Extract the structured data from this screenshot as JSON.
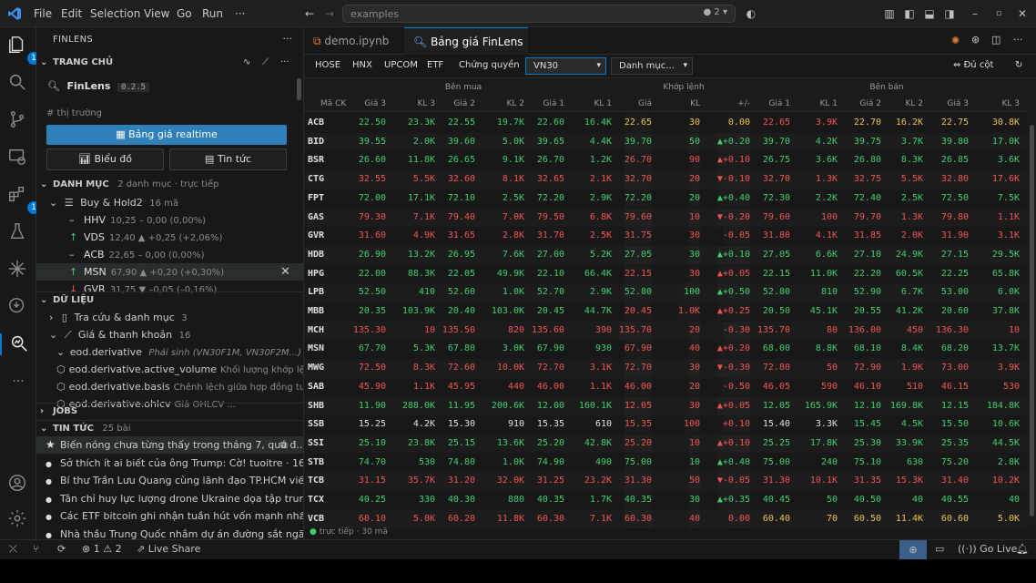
{
  "menu": [
    "File",
    "Edit",
    "Selection",
    "View",
    "Go",
    "Run",
    "···"
  ],
  "command_center": {
    "placeholder": "examples",
    "copilot_count": "2"
  },
  "activity": {
    "explorer_badge": "1",
    "extensions_badge": "1"
  },
  "sidebar": {
    "title": "FINLENS",
    "home": {
      "label": "TRANG CHỦ"
    },
    "app": {
      "name": "FinLens",
      "version": "0.2.5"
    },
    "market_heading": "# thị trường",
    "realtime_button": "Bảng giá realtime",
    "chart_button": "Biểu đồ",
    "news_button": "Tin tức",
    "portfolio": {
      "label": "DANH MỤC",
      "sub": "2 danh mục · trực tiếp",
      "group": "Buy & Hold2",
      "group_count": "16 mã",
      "items": [
        {
          "sym": "HHV",
          "detail": "10,25 – 0,00 (0,00%)",
          "dir": "flat"
        },
        {
          "sym": "VDS",
          "detail": "12,40 ▲ +0,25 (+2,06%)",
          "dir": "up"
        },
        {
          "sym": "ACB",
          "detail": "22,65 – 0,00 (0,00%)",
          "dir": "flat"
        },
        {
          "sym": "MSN",
          "detail": "67,90 ▲ +0,20 (+0,30%)",
          "dir": "up"
        },
        {
          "sym": "GVR",
          "detail": "31,75 ▼ –0,05 (–0,16%)",
          "dir": "down"
        }
      ]
    },
    "data": {
      "label": "DỮ LIỆU",
      "lookup": "Tra cứu & danh mục",
      "lookup_count": "3",
      "prices": "Giá & thanh khoản",
      "prices_count": "16",
      "eod": "eod.derivative",
      "eod_desc": "Phái sinh (VN30F1M, VN30F2M...)",
      "items": [
        {
          "name": "eod.derivative.active_volume",
          "desc": "Khối lượng khớp lện..."
        },
        {
          "name": "eod.derivative.basis",
          "desc": "Chênh lệch giữa hợp đồng tư..."
        },
        {
          "name": "eod.derivative.ohlcv",
          "desc": "Giá OHLCV ..."
        }
      ]
    },
    "jobs": {
      "label": "JOBS"
    },
    "news": {
      "label": "TIN TỨC",
      "count": "25 bài",
      "items": [
        "Biến nóng chưa từng thấy trong tháng 7, quá đ...",
        "Sở thích ít ai biết của ông Trump: Cờ!  tuoitre · 16 ph...",
        "Bí thư Trần Lưu Quang cùng lãnh đạo TP.HCM viến...",
        "Tân chỉ huy lực lượng drone Ukraine dọa tập trung...",
        "Các ETF bitcoin ghi nhận tuần hút vốn mạnh nhất ...",
        "Nhà thầu Trung Quốc nhắm dự án đường sắt ngã..."
      ]
    }
  },
  "tabs": [
    {
      "label": "demo.ipynb"
    },
    {
      "label": "Bảng giá FinLens"
    }
  ],
  "toolbar": {
    "filters": [
      "HOSE",
      "HNX",
      "UPCOM",
      "ETF",
      "Chứng quyền"
    ],
    "index_select": "VN30",
    "list_select": "Danh mục...",
    "fit_label": "Đủ cột"
  },
  "board": {
    "groups": {
      "buy": "Bên mua",
      "match": "Khớp lệnh",
      "sell": "Bên bán"
    },
    "columns": [
      "Mã CK",
      "Giá 3",
      "KL 3",
      "Giá 2",
      "KL 2",
      "Giá 1",
      "KL 1",
      "Giá",
      "KL",
      "+/-",
      "Giá 1",
      "KL 1",
      "Giá 2",
      "KL 2",
      "Giá 3",
      "KL 3"
    ],
    "rows": [
      [
        "ACB",
        "22.50",
        "23.3K",
        "22.55",
        "19.7K",
        "22.60",
        "16.4K",
        "22.65",
        "30",
        "0.00",
        "22.65",
        "3.9K",
        "22.70",
        "16.2K",
        "22.75",
        "30.8K"
      ],
      [
        "BID",
        "39.55",
        "2.0K",
        "39.60",
        "5.0K",
        "39.65",
        "4.4K",
        "39.70",
        "50",
        "▲+0.20",
        "39.70",
        "4.2K",
        "39.75",
        "3.7K",
        "39.80",
        "17.0K"
      ],
      [
        "BSR",
        "26.60",
        "11.8K",
        "26.65",
        "9.1K",
        "26.70",
        "1.2K",
        "26.70",
        "90",
        "▲+0.10",
        "26.75",
        "3.6K",
        "26.80",
        "8.3K",
        "26.85",
        "3.6K"
      ],
      [
        "CTG",
        "32.55",
        "5.5K",
        "32.60",
        "8.1K",
        "32.65",
        "2.1K",
        "32.70",
        "20",
        "▼-0.10",
        "32.70",
        "1.3K",
        "32.75",
        "5.5K",
        "32.80",
        "17.6K"
      ],
      [
        "FPT",
        "72.00",
        "17.1K",
        "72.10",
        "2.5K",
        "72.20",
        "2.9K",
        "72.20",
        "20",
        "▲+0.40",
        "72.30",
        "2.2K",
        "72.40",
        "2.5K",
        "72.50",
        "7.5K"
      ],
      [
        "GAS",
        "79.30",
        "7.1K",
        "79.40",
        "7.0K",
        "79.50",
        "6.8K",
        "79.60",
        "10",
        "▼-0.20",
        "79.60",
        "100",
        "79.70",
        "1.3K",
        "79.80",
        "1.1K"
      ],
      [
        "GVR",
        "31.60",
        "4.9K",
        "31.65",
        "2.8K",
        "31.70",
        "2.5K",
        "31.75",
        "30",
        "-0.05",
        "31.80",
        "4.1K",
        "31.85",
        "2.0K",
        "31.90",
        "3.1K"
      ],
      [
        "HDB",
        "26.90",
        "13.2K",
        "26.95",
        "7.6K",
        "27.00",
        "5.2K",
        "27.05",
        "30",
        "▲+0.10",
        "27.05",
        "6.6K",
        "27.10",
        "24.9K",
        "27.15",
        "29.5K"
      ],
      [
        "HPG",
        "22.00",
        "88.3K",
        "22.05",
        "49.9K",
        "22.10",
        "66.4K",
        "22.15",
        "30",
        "▲+0.05",
        "22.15",
        "11.0K",
        "22.20",
        "60.5K",
        "22.25",
        "65.8K"
      ],
      [
        "LPB",
        "52.50",
        "410",
        "52.60",
        "1.0K",
        "52.70",
        "2.9K",
        "52.80",
        "100",
        "▲+0.50",
        "52.80",
        "810",
        "52.90",
        "6.7K",
        "53.00",
        "6.0K"
      ],
      [
        "MBB",
        "20.35",
        "103.9K",
        "20.40",
        "103.0K",
        "20.45",
        "44.7K",
        "20.45",
        "1.0K",
        "▲+0.25",
        "20.50",
        "45.1K",
        "20.55",
        "41.2K",
        "20.60",
        "37.8K"
      ],
      [
        "MCH",
        "135.30",
        "10",
        "135.50",
        "820",
        "135.60",
        "390",
        "135.70",
        "20",
        "-0.30",
        "135.70",
        "80",
        "136.00",
        "450",
        "136.30",
        "10"
      ],
      [
        "MSN",
        "67.70",
        "5.3K",
        "67.80",
        "3.0K",
        "67.90",
        "930",
        "67.90",
        "40",
        "▲+0.20",
        "68.00",
        "8.8K",
        "68.10",
        "8.4K",
        "68.20",
        "13.7K"
      ],
      [
        "MWG",
        "72.50",
        "8.3K",
        "72.60",
        "10.0K",
        "72.70",
        "3.1K",
        "72.70",
        "30",
        "▼-0.30",
        "72.80",
        "50",
        "72.90",
        "1.9K",
        "73.00",
        "3.9K"
      ],
      [
        "SAB",
        "45.90",
        "1.1K",
        "45.95",
        "440",
        "46.00",
        "1.1K",
        "46.00",
        "20",
        "-0.50",
        "46.05",
        "590",
        "46.10",
        "510",
        "46.15",
        "530"
      ],
      [
        "SHB",
        "11.90",
        "288.0K",
        "11.95",
        "200.6K",
        "12.00",
        "160.1K",
        "12.05",
        "30",
        "▲+0.05",
        "12.05",
        "165.9K",
        "12.10",
        "169.8K",
        "12.15",
        "184.8K"
      ],
      [
        "SSB",
        "15.25",
        "4.2K",
        "15.30",
        "910",
        "15.35",
        "610",
        "15.35",
        "100",
        "+0.10",
        "15.40",
        "3.3K",
        "15.45",
        "4.5K",
        "15.50",
        "10.6K"
      ],
      [
        "SSI",
        "25.10",
        "23.8K",
        "25.15",
        "13.6K",
        "25.20",
        "42.8K",
        "25.20",
        "10",
        "▲+0.10",
        "25.25",
        "17.8K",
        "25.30",
        "33.9K",
        "25.35",
        "44.5K"
      ],
      [
        "STB",
        "74.70",
        "530",
        "74.80",
        "1.0K",
        "74.90",
        "490",
        "75.00",
        "10",
        "▲+0.40",
        "75.00",
        "240",
        "75.10",
        "630",
        "75.20",
        "2.8K"
      ],
      [
        "TCB",
        "31.15",
        "35.7K",
        "31.20",
        "32.0K",
        "31.25",
        "23.2K",
        "31.30",
        "50",
        "▼-0.05",
        "31.30",
        "10.1K",
        "31.35",
        "15.3K",
        "31.40",
        "10.2K"
      ],
      [
        "TCX",
        "40.25",
        "330",
        "40.30",
        "880",
        "40.35",
        "1.7K",
        "40.35",
        "30",
        "▲+0.35",
        "40.45",
        "50",
        "40.50",
        "40",
        "40.55",
        "40"
      ],
      [
        "VCB",
        "60.10",
        "5.0K",
        "60.20",
        "11.8K",
        "60.30",
        "7.1K",
        "60.30",
        "40",
        "0.00",
        "60.40",
        "70",
        "60.50",
        "11.4K",
        "60.60",
        "5.0K"
      ]
    ],
    "row_colors": [
      [
        "ref",
        "up",
        "dn",
        "ref",
        "ref"
      ],
      [
        "up",
        "up",
        "up",
        "up",
        "up"
      ],
      [
        "dn",
        "up",
        "up",
        "up",
        "up"
      ],
      [
        "dn",
        "dn",
        "dn",
        "dn",
        "dn"
      ],
      [
        "up",
        "up",
        "up",
        "up",
        "up"
      ],
      [
        "dn",
        "dn",
        "dn",
        "dn",
        "dn"
      ],
      [
        "dn",
        "dn",
        "dn",
        "dn",
        "dn"
      ],
      [
        "up",
        "up",
        "up",
        "up",
        "up"
      ],
      [
        "dn",
        "up",
        "up",
        "up",
        "up"
      ],
      [
        "up",
        "up",
        "up",
        "up",
        "up"
      ],
      [
        "dn",
        "up",
        "up",
        "up",
        "up"
      ],
      [
        "dn",
        "dn",
        "dn",
        "dn",
        "dn"
      ],
      [
        "dn",
        "up",
        "up",
        "up",
        "up"
      ],
      [
        "dn",
        "dn",
        "dn",
        "dn",
        "dn"
      ],
      [
        "dn",
        "dn",
        "dn",
        "dn",
        "dn"
      ],
      [
        "dn",
        "up",
        "up",
        "up",
        "up"
      ],
      [
        "dn",
        "nt",
        "nt",
        "up",
        "up"
      ],
      [
        "dn",
        "up",
        "up",
        "up",
        "up"
      ],
      [
        "up",
        "up",
        "up",
        "up",
        "up"
      ],
      [
        "dn",
        "dn",
        "dn",
        "dn",
        "dn"
      ],
      [
        "up",
        "up",
        "up",
        "up",
        "up"
      ],
      [
        "dn",
        "dn",
        "ref",
        "ref",
        "ref"
      ]
    ],
    "status": "trực tiếp · 30 mã"
  },
  "statusbar": {
    "problems_errors": "1",
    "problems_warnings": "2",
    "live_share": "Live Share",
    "go_live": "Go Live"
  },
  "colors": {
    "accent": "#0078d4",
    "up": "#3fcf6f",
    "down": "#f25454",
    "ref": "#e8c44a",
    "button": "#2f7fb8"
  }
}
